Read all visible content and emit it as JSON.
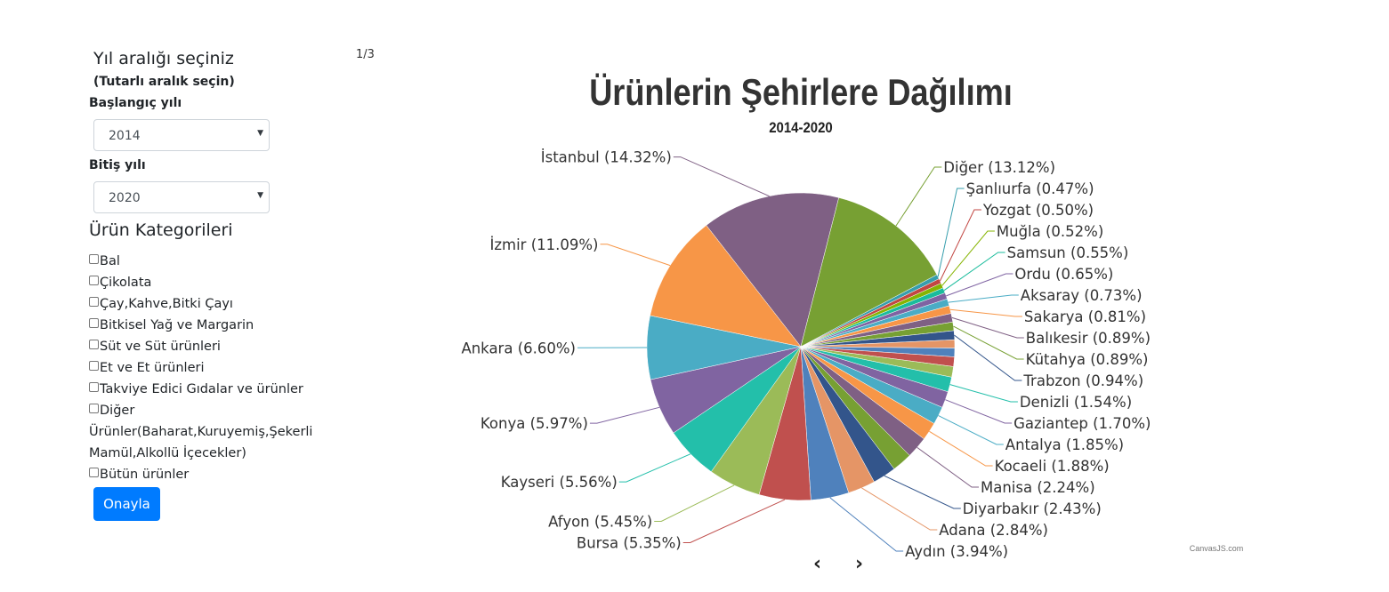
{
  "filters": {
    "title": "Yıl aralığı seçiniz",
    "subtitle": "(Tutarlı aralık seçin)",
    "start_label": "Başlangıç yılı",
    "start_value": "2014",
    "end_label": "Bitiş yılı",
    "end_value": "2020",
    "categories_title": "Ürün Kategorileri",
    "categories": [
      "Bal",
      "Çikolata",
      "Çay,Kahve,Bitki Çayı",
      "Bitkisel Yağ ve Margarin",
      "Süt ve Süt ürünleri",
      "Et ve Et ürünleri",
      "Takviye Edici Gıdalar ve ürünler",
      "Diğer Ürünler(Baharat,Kuruyemiş,Şekerli Mamül,Alkollü İçecekler)",
      "Bütün ürünler"
    ],
    "submit_label": "Onayla"
  },
  "pager": {
    "text": "1/3",
    "prev": "‹",
    "next": "›"
  },
  "credit": "CanvasJS.com",
  "chart_data": {
    "type": "pie",
    "title": "Ürünlerin Şehirlere Dağılımı",
    "subtitle": "2014-2020",
    "slices": [
      {
        "label": "İstanbul",
        "value": 14.32,
        "color": "#7f6084"
      },
      {
        "label": "Diğer",
        "value": 13.12,
        "color": "#77a033"
      },
      {
        "label": "Şanlıurfa",
        "value": 0.47,
        "color": "#369ead"
      },
      {
        "label": "Yozgat",
        "value": 0.5,
        "color": "#c24642"
      },
      {
        "label": "Muğla",
        "value": 0.52,
        "color": "#86b402"
      },
      {
        "label": "Samsun",
        "value": 0.55,
        "color": "#1abc9c"
      },
      {
        "label": "Ordu",
        "value": 0.65,
        "color": "#7f63a2"
      },
      {
        "label": "Aksaray",
        "value": 0.73,
        "color": "#4aacc5"
      },
      {
        "label": "Sakarya",
        "value": 0.81,
        "color": "#f79647"
      },
      {
        "label": "Balıkesir",
        "value": 0.89,
        "color": "#7f6084"
      },
      {
        "label": "Kütahya",
        "value": 0.89,
        "color": "#77a033"
      },
      {
        "label": "Trabzon",
        "value": 0.94,
        "color": "#33558b"
      },
      {
        "label": "",
        "value": 0.85,
        "color": "#e59566"
      },
      {
        "label": "",
        "value": 0.9,
        "color": "#4f81bc"
      },
      {
        "label": "",
        "value": 1.0,
        "color": "#c0504e"
      },
      {
        "label": "",
        "value": 1.1,
        "color": "#9bbb58"
      },
      {
        "label": "Denizli",
        "value": 1.54,
        "color": "#23bfaa"
      },
      {
        "label": "Gaziantep",
        "value": 1.7,
        "color": "#8064a1"
      },
      {
        "label": "Antalya",
        "value": 1.85,
        "color": "#4aacc5"
      },
      {
        "label": "Kocaeli",
        "value": 1.88,
        "color": "#f79647"
      },
      {
        "label": "Manisa",
        "value": 2.24,
        "color": "#7f6084"
      },
      {
        "label": "",
        "value": 2.1,
        "color": "#77a033"
      },
      {
        "label": "Diyarbakır",
        "value": 2.43,
        "color": "#33558b"
      },
      {
        "label": "Adana",
        "value": 2.84,
        "color": "#e59566"
      },
      {
        "label": "Aydın",
        "value": 3.94,
        "color": "#4f81bc"
      },
      {
        "label": "Bursa",
        "value": 5.35,
        "color": "#c0504e"
      },
      {
        "label": "Afyon",
        "value": 5.45,
        "color": "#9bbb58"
      },
      {
        "label": "Kayseri",
        "value": 5.56,
        "color": "#23bfaa"
      },
      {
        "label": "Konya",
        "value": 5.97,
        "color": "#8064a1"
      },
      {
        "label": "Ankara",
        "value": 6.6,
        "color": "#4aacc5"
      },
      {
        "label": "İzmir",
        "value": 11.09,
        "color": "#f79647"
      }
    ]
  }
}
